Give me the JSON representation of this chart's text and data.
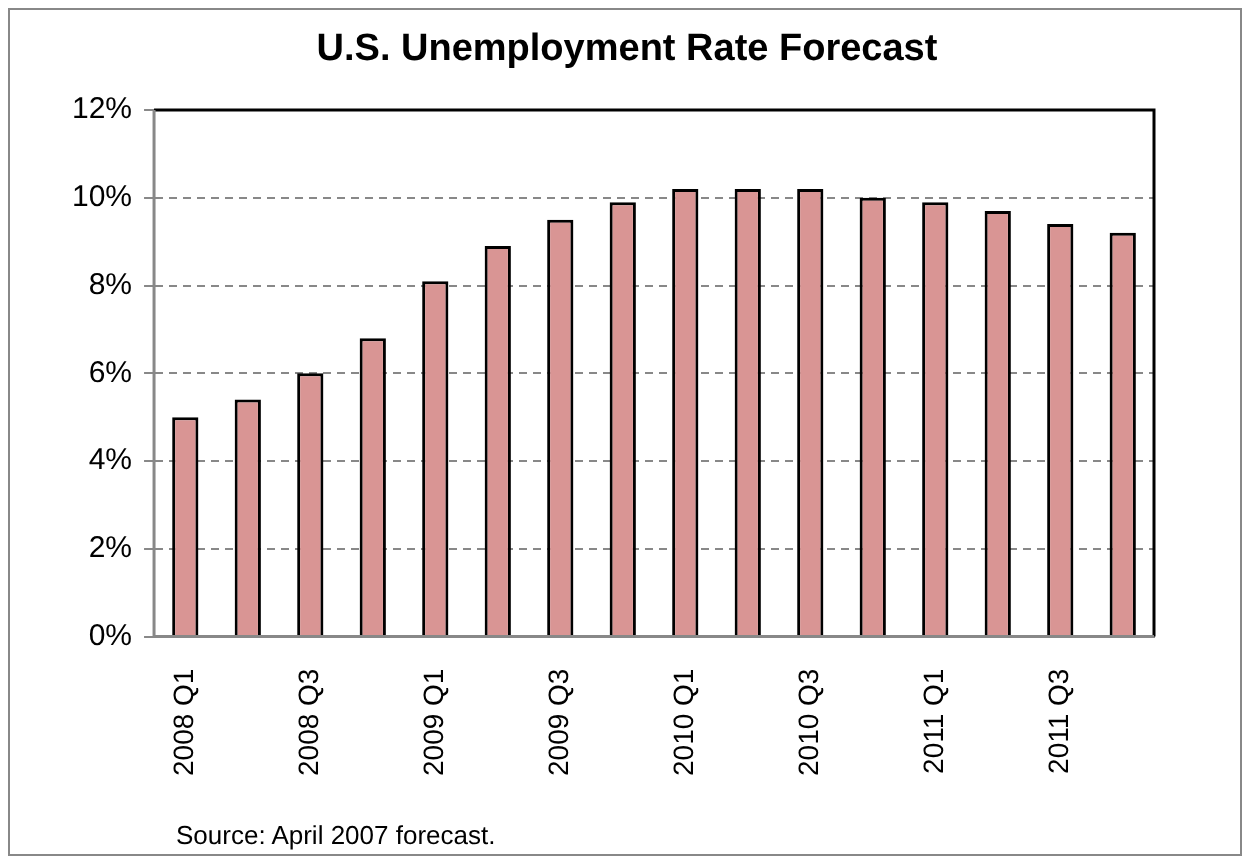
{
  "chart_data": {
    "type": "bar",
    "title": "U.S. Unemployment Rate Forecast",
    "categories": [
      "2008 Q1",
      null,
      "2008 Q3",
      null,
      "2009 Q1",
      null,
      "2009 Q3",
      null,
      "2010 Q1",
      null,
      "2010 Q3",
      null,
      "2011 Q1",
      null,
      "2011 Q3",
      null
    ],
    "values": [
      5.0,
      5.4,
      6.0,
      6.8,
      8.1,
      8.9,
      9.5,
      9.9,
      10.2,
      10.2,
      10.2,
      10.0,
      9.9,
      9.7,
      9.4,
      9.2
    ],
    "color": "#d99594",
    "ylim": [
      0,
      12
    ],
    "yticks": [
      {
        "value": 0,
        "label": "0%"
      },
      {
        "value": 2,
        "label": "2%"
      },
      {
        "value": 4,
        "label": "4%"
      },
      {
        "value": 6,
        "label": "6%"
      },
      {
        "value": 8,
        "label": "8%"
      },
      {
        "value": 10,
        "label": "10%"
      },
      {
        "value": 12,
        "label": "12%"
      }
    ],
    "grid": "y",
    "legend": false,
    "annotations": [
      "Source: April 2007 forecast."
    ]
  }
}
